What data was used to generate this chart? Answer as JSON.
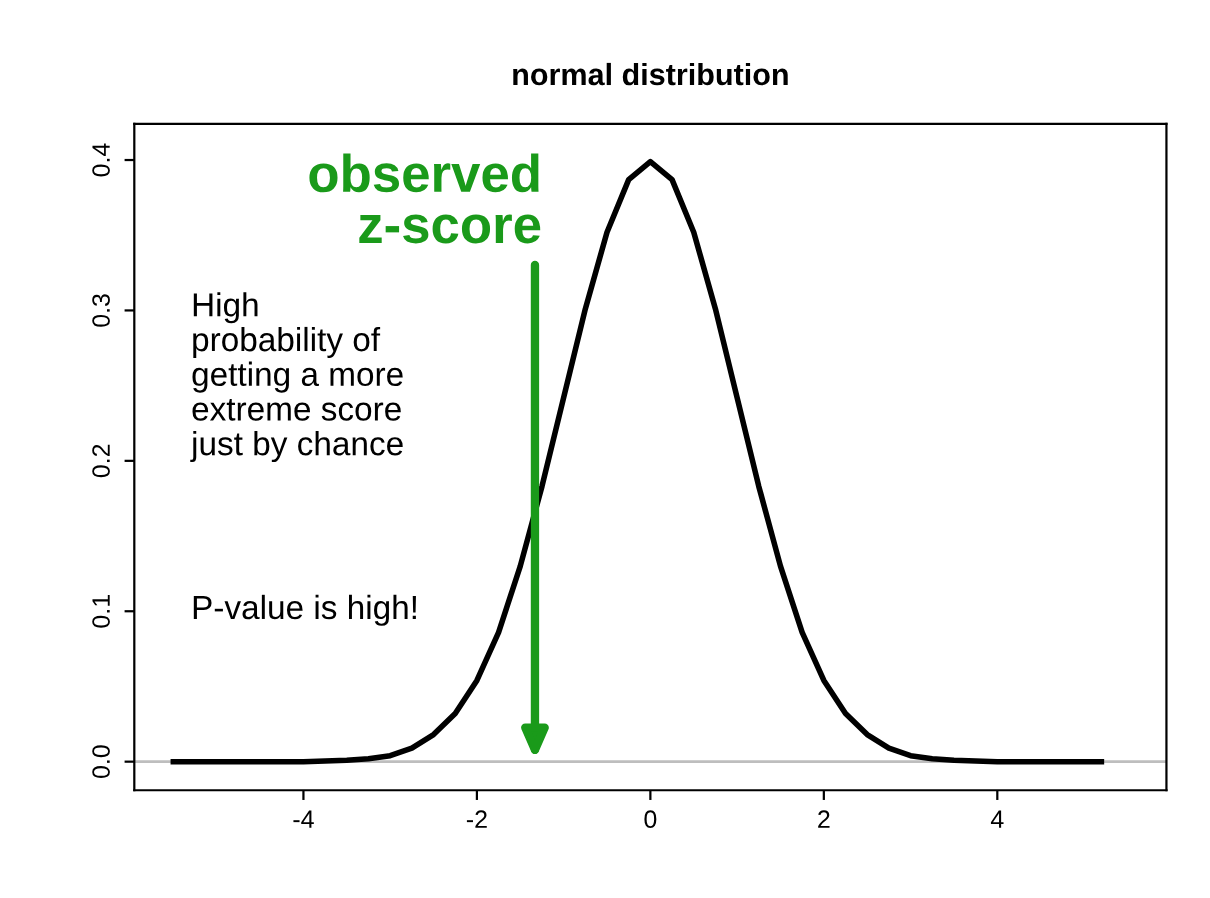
{
  "chart_data": {
    "type": "line",
    "title": "normal distribution",
    "x": [
      -5.5,
      -5,
      -4.5,
      -4,
      -3.5,
      -3.25,
      -3,
      -2.75,
      -2.5,
      -2.25,
      -2,
      -1.75,
      -1.5,
      -1.25,
      -1,
      -0.75,
      -0.5,
      -0.25,
      0,
      0.25,
      0.5,
      0.75,
      1,
      1.25,
      1.5,
      1.75,
      2,
      2.25,
      2.5,
      2.75,
      3,
      3.25,
      3.5,
      4,
      4.5,
      5,
      5.2
    ],
    "series": [
      {
        "color": "#000000",
        "values": [
          0,
          0,
          0,
          0,
          0.001,
          0.002,
          0.004,
          0.009,
          0.018,
          0.032,
          0.054,
          0.086,
          0.13,
          0.183,
          0.242,
          0.301,
          0.352,
          0.387,
          0.399,
          0.387,
          0.352,
          0.301,
          0.242,
          0.183,
          0.13,
          0.086,
          0.054,
          0.032,
          0.018,
          0.009,
          0.004,
          0.002,
          0.001,
          0,
          0,
          0,
          0
        ]
      }
    ],
    "xlim": [
      -5.95,
      5.95
    ],
    "ylim": [
      -0.019,
      0.424
    ],
    "xticks": [
      -4,
      -2,
      0,
      2,
      4
    ],
    "yticks": [
      {
        "value": 0,
        "label": "0.0"
      },
      0.1,
      0.2,
      0.3,
      0.4
    ],
    "ref_lines": [
      {
        "axis": "y",
        "value": 0,
        "color": "#bebebe"
      }
    ],
    "annotations": [
      "observed\nz-score",
      "High\nprobability of\ngetting a more\nextreme score\njust by chance",
      "P-value is high!"
    ],
    "grid": false,
    "legend": false,
    "marker": "none",
    "line_style": "solid"
  }
}
